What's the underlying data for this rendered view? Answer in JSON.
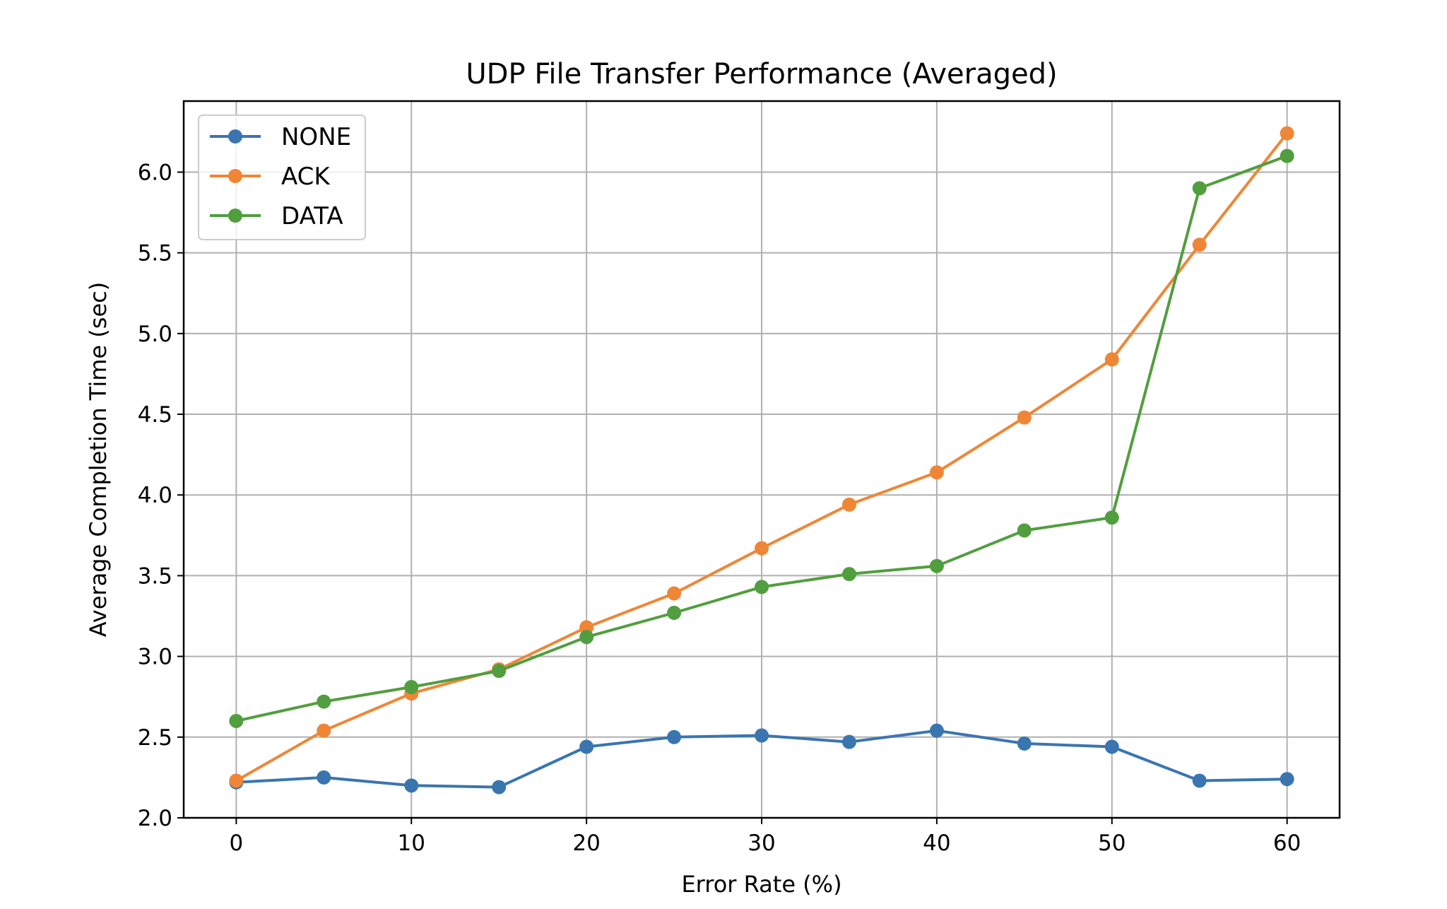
{
  "chart_data": {
    "type": "line",
    "title": "UDP File Transfer Performance (Averaged)",
    "xlabel": "Error Rate (%)",
    "ylabel": "Average Completion Time (sec)",
    "x": [
      0,
      5,
      10,
      15,
      20,
      25,
      30,
      35,
      40,
      45,
      50,
      55,
      60
    ],
    "xlim": [
      -3,
      63
    ],
    "ylim": [
      2.0,
      6.44
    ],
    "xticks": [
      0,
      10,
      20,
      30,
      40,
      50,
      60
    ],
    "yticks": [
      "2.0",
      "2.5",
      "3.0",
      "3.5",
      "4.0",
      "4.5",
      "5.0",
      "5.5",
      "6.0"
    ],
    "grid": true,
    "legend_position": "upper-left",
    "series": [
      {
        "name": "NONE",
        "color": "#3a75b0",
        "values": [
          2.22,
          2.25,
          2.2,
          2.19,
          2.44,
          2.5,
          2.51,
          2.47,
          2.54,
          2.46,
          2.44,
          2.23,
          2.24
        ]
      },
      {
        "name": "ACK",
        "color": "#ef8636",
        "values": [
          2.23,
          2.54,
          2.77,
          2.92,
          3.18,
          3.39,
          3.67,
          3.94,
          4.14,
          4.48,
          4.84,
          5.55,
          6.24
        ]
      },
      {
        "name": "DATA",
        "color": "#519e3e",
        "values": [
          2.6,
          2.72,
          2.81,
          2.91,
          3.12,
          3.27,
          3.43,
          3.51,
          3.56,
          3.78,
          3.86,
          5.9,
          6.1
        ]
      }
    ]
  }
}
